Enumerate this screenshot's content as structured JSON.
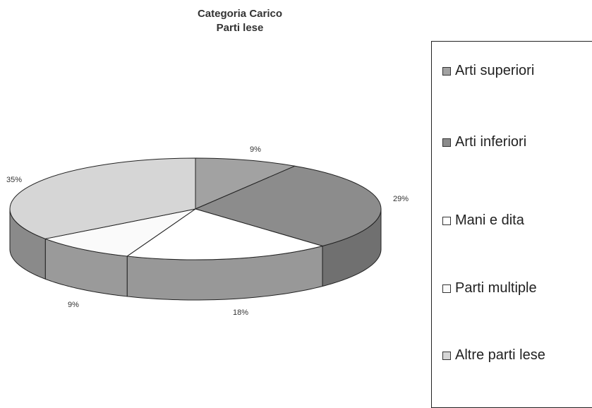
{
  "chart_data": {
    "type": "pie",
    "title": "Categoria Carico",
    "subtitle": "Parti lese",
    "categories": [
      "Arti superiori",
      "Arti inferiori",
      "Mani e dita",
      "Parti multiple",
      "Altre parti lese"
    ],
    "values": [
      9,
      29,
      18,
      9,
      35
    ],
    "data_labels": [
      "9%",
      "29%",
      "18%",
      "9%",
      "35%"
    ],
    "colors": [
      "#a2a2a2",
      "#8c8c8c",
      "#ffffff",
      "#fafafa",
      "#d6d6d6"
    ],
    "side_colors": [
      "#7c7c7c",
      "#707070",
      "#989898",
      "#9a9a9a",
      "#8a8a8a"
    ],
    "legend_position": "right",
    "style": "3d-pie"
  }
}
